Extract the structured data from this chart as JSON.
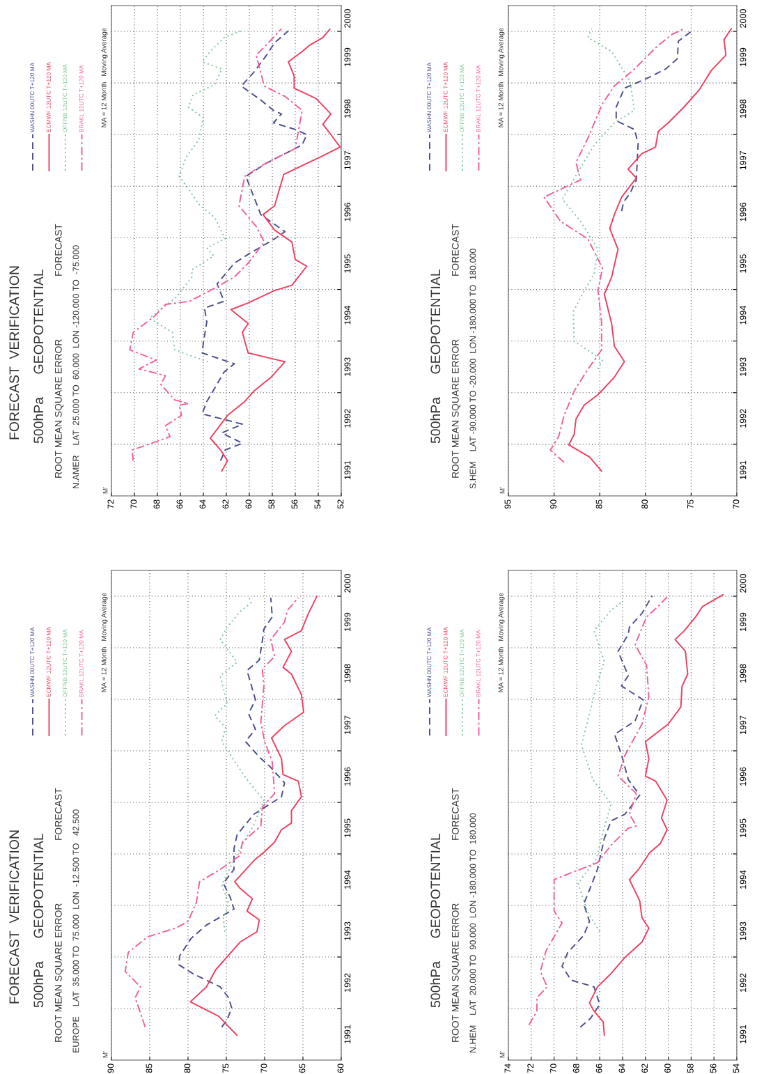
{
  "chart_data": [
    {
      "type": "line",
      "subtitle": "500hPa      GEOPOTENTIAL",
      "annotations": [
        "M'",
        "ROOT MEAN SQUARE ERROR",
        "FORECAST",
        "EUROPE    LAT  35.000 TO  75.000  LON  -12.500 TO   42.500",
        "MA = 12 Month   Moving Average",
        "FORECAST  VERIFICATION"
      ],
      "ylim": [
        1991,
        2000.5
      ],
      "yticks": [
        {
          "value": 1992,
          "label": null
        },
        {
          "value": 1993,
          "label": null
        },
        {
          "value": 1994,
          "label": null
        },
        {
          "value": 1995,
          "label": null
        },
        {
          "value": 1996,
          "label": null
        },
        {
          "value": 1997,
          "label": null
        },
        {
          "value": 1998,
          "label": null
        },
        {
          "value": 1999,
          "label": null
        },
        {
          "value": 2000,
          "label": null
        },
        {
          "value": 1991.5,
          "label": "1991"
        },
        {
          "value": 1992.5,
          "label": "1992"
        },
        {
          "value": 1993.5,
          "label": "1993"
        },
        {
          "value": 1994.5,
          "label": "1994"
        },
        {
          "value": 1995.5,
          "label": "1995"
        },
        {
          "value": 1996.5,
          "label": "1996"
        },
        {
          "value": 1997.5,
          "label": "1997"
        },
        {
          "value": 1998.5,
          "label": "1998"
        },
        {
          "value": 1999.5,
          "label": "1999"
        },
        {
          "value": 2000.25,
          "label": "2000"
        }
      ],
      "xlim": [
        90,
        60
      ],
      "xticks": [
        60,
        65,
        70,
        75,
        80,
        85,
        90
      ],
      "grid": true,
      "legend": "top left",
      "series": [
        {
          "name": "WASHN 00UTC T+120 MA",
          "color": "#4b4f8c",
          "line_style": "dashed",
          "values": [
            1991.64,
            1991.78,
            1992.01,
            1992.21,
            1992.42,
            1992.55,
            1992.68,
            1992.85,
            1993.02,
            1993.36,
            1993.62,
            1993.79,
            1993.93,
            1994.16,
            1994.43,
            1994.7,
            1995.1,
            1995.37,
            1995.77,
            1996.11,
            1996.38,
            1996.71,
            1996.85,
            1997.18,
            1997.42,
            1997.72,
            1997.99,
            1998.56,
            1998.76,
            1999.13,
            1999.36,
            1999.6,
            1999.97
          ],
          "x": [
            75.6,
            74.9,
            74.3,
            74.7,
            75.8,
            77.6,
            79.4,
            81.2,
            81.1,
            79.6,
            77.6,
            75.6,
            74.0,
            74.5,
            75.4,
            74.0,
            74.0,
            73.6,
            71.4,
            67.8,
            67.4,
            69.4,
            70.5,
            72.5,
            71.2,
            72.1,
            71.2,
            72.3,
            70.7,
            70.3,
            70.1,
            69.0,
            69.2
          ]
        },
        {
          "name": "ECMWF 12UTC T+120 MA",
          "color": "#ee4060",
          "line_style": "solid",
          "values": [
            1991.48,
            1991.85,
            1992.13,
            1992.42,
            1992.75,
            1993.29,
            1993.49,
            1993.72,
            1993.89,
            1994.13,
            1994.33,
            1994.46,
            1994.87,
            1995.03,
            1995.23,
            1995.47,
            1995.6,
            1995.84,
            1996.11,
            1996.41,
            1996.54,
            1996.85,
            1997.25,
            1997.49,
            1997.75,
            1998.09,
            1998.49,
            1998.62,
            1998.93,
            1999.16,
            1999.33,
            1999.66,
            1999.93,
            2000.0
          ],
          "x": [
            73.6,
            76.0,
            79.7,
            77.6,
            76.4,
            73.2,
            71.0,
            70.7,
            72.3,
            71.6,
            73.2,
            73.9,
            71.4,
            70.1,
            68.7,
            67.8,
            66.5,
            66.5,
            65.2,
            65.6,
            67.6,
            67.8,
            69.1,
            67.4,
            64.9,
            65.2,
            66.5,
            67.6,
            66.5,
            67.4,
            65.2,
            64.3,
            63.4,
            63.2
          ]
        },
        {
          "name": "OFFNB 12UTC T+120 MA",
          "color": "#80c49a",
          "line_style": "dotted",
          "values": [
            1993.49,
            1993.76,
            1994.03,
            1994.4,
            1994.73,
            1995.1,
            1995.57,
            1996.04,
            1996.44,
            1996.81,
            1997.18,
            1997.45,
            1997.68,
            1997.92,
            1998.46,
            1998.72,
            1999.16,
            1999.4,
            1999.7,
            1999.87,
            2000.0
          ],
          "x": [
            75.2,
            75.4,
            74.7,
            75.6,
            74.5,
            73.2,
            71.4,
            70.1,
            72.3,
            74.0,
            75.6,
            75.1,
            76.5,
            74.9,
            75.8,
            73.6,
            75.8,
            74.9,
            73.2,
            71.8,
            72.1
          ]
        },
        {
          "name": "BRAKL 12UTC T+120 MA",
          "color": "#f0609e",
          "line_style": "dashdot",
          "values": [
            1991.64,
            1991.91,
            1992.21,
            1992.42,
            1992.72,
            1993.09,
            1993.39,
            1993.56,
            1993.69,
            1994.06,
            1994.46,
            1994.7,
            1994.97,
            1995.23,
            1995.54,
            1995.91,
            1996.17,
            1996.78,
            1997.18,
            1997.55,
            1998.26,
            1998.59,
            1998.83,
            1999.16,
            1999.5,
            1999.73,
            1999.97
          ],
          "x": [
            85.6,
            86.2,
            86.9,
            86.2,
            88.2,
            87.8,
            85.3,
            81.6,
            80.0,
            78.9,
            78.5,
            75.8,
            73.2,
            72.9,
            70.5,
            70.3,
            68.7,
            69.0,
            70.0,
            70.5,
            70.1,
            70.3,
            68.7,
            69.2,
            67.4,
            67.0,
            65.6
          ]
        }
      ]
    },
    {
      "type": "line",
      "subtitle": "500hPa      GEOPOTENTIAL",
      "annotations": [
        "M'",
        "ROOT MEAN SQUARE ERROR",
        "FORECAST",
        "N.AMER    LAT  25.000 TO  60.000  LON -120.000 TO  -75.000",
        "MA = 12 Month   Moving Average",
        "FORECAST  VERIFICATION"
      ],
      "ylim": [
        1991,
        2000.5
      ],
      "yticks": [
        {
          "value": 1992,
          "label": null
        },
        {
          "value": 1993,
          "label": null
        },
        {
          "value": 1994,
          "label": null
        },
        {
          "value": 1995,
          "label": null
        },
        {
          "value": 1996,
          "label": null
        },
        {
          "value": 1997,
          "label": null
        },
        {
          "value": 1998,
          "label": null
        },
        {
          "value": 1999,
          "label": null
        },
        {
          "value": 2000,
          "label": null
        },
        {
          "value": 1991.5,
          "label": "1991"
        },
        {
          "value": 1992.5,
          "label": "1992"
        },
        {
          "value": 1993.5,
          "label": "1993"
        },
        {
          "value": 1994.5,
          "label": "1994"
        },
        {
          "value": 1995.5,
          "label": "1995"
        },
        {
          "value": 1996.5,
          "label": "1996"
        },
        {
          "value": 1997.5,
          "label": "1997"
        },
        {
          "value": 1998.5,
          "label": "1998"
        },
        {
          "value": 1999.5,
          "label": "1999"
        },
        {
          "value": 2000.25,
          "label": "2000"
        }
      ],
      "xlim": [
        72,
        52
      ],
      "xticks": [
        52,
        54,
        56,
        58,
        60,
        62,
        64,
        66,
        68,
        70,
        72
      ],
      "grid": true,
      "legend": "top left",
      "series": [
        {
          "name": "WASHN 00UTC T+120 MA",
          "color": "#4b4f8c",
          "line_style": "dashed",
          "values": [
            1991.68,
            1991.89,
            1992.02,
            1992.22,
            1992.39,
            1992.59,
            1992.83,
            1993.09,
            1993.4,
            1993.56,
            1993.77,
            1993.97,
            1994.37,
            1994.64,
            1994.77,
            1995.11,
            1995.51,
            1995.68,
            1995.98,
            1996.12,
            1996.45,
            1996.79,
            1997.19,
            1997.46,
            1997.8,
            1998.0,
            1998.1,
            1998.23,
            1998.4,
            1998.47,
            1998.67,
            1998.94,
            1999.21,
            1999.54,
            1999.78,
            2000.01
          ],
          "x": [
            62.5,
            62.1,
            60.6,
            62.4,
            60.6,
            64.1,
            63.7,
            63.0,
            62.2,
            61.3,
            64.1,
            64.0,
            63.7,
            63.9,
            62.2,
            62.8,
            61.3,
            60.1,
            57.8,
            56.9,
            59.0,
            59.6,
            60.3,
            58.4,
            55.4,
            55.0,
            56.0,
            57.9,
            57.2,
            57.9,
            59.0,
            60.7,
            59.6,
            58.5,
            57.8,
            56.6
          ]
        },
        {
          "name": "ECMWF 12UTC T+120 MA",
          "color": "#ee4060",
          "line_style": "solid",
          "values": [
            1991.48,
            1991.68,
            1991.89,
            1992.12,
            1992.29,
            1992.56,
            1992.83,
            1993.03,
            1993.3,
            1993.6,
            1993.77,
            1994.0,
            1994.17,
            1994.34,
            1994.61,
            1994.74,
            1994.98,
            1995.08,
            1995.45,
            1995.58,
            1995.92,
            1996.15,
            1996.45,
            1996.62,
            1997.23,
            1997.59,
            1997.76,
            1998.03,
            1998.2,
            1998.4,
            1998.7,
            1998.9,
            1999.14,
            1999.41,
            1999.61,
            1999.74,
            1999.88,
            2000.04
          ],
          "x": [
            62.4,
            61.9,
            62.5,
            63.4,
            62.8,
            61.9,
            60.4,
            59.6,
            58.1,
            56.9,
            60.1,
            60.4,
            60.6,
            60.1,
            61.6,
            60.1,
            57.8,
            56.3,
            55.0,
            56.0,
            56.3,
            57.8,
            58.8,
            57.8,
            57.0,
            53.6,
            52.1,
            53.0,
            53.6,
            52.9,
            54.2,
            56.1,
            56.1,
            56.6,
            55.4,
            54.7,
            53.6,
            53.0
          ]
        },
        {
          "name": "OFFNB 12UTC T+120 MA",
          "color": "#80c49a",
          "line_style": "dotted",
          "values": [
            1993.6,
            1993.7,
            1993.83,
            1994.17,
            1994.44,
            1994.84,
            1995.24,
            1995.38,
            1995.65,
            1995.81,
            1995.98,
            1996.39,
            1996.65,
            1996.92,
            1997.19,
            1997.56,
            1997.9,
            1998.33,
            1998.53,
            1998.77,
            1998.97,
            1999.27,
            1999.41,
            1999.61,
            1999.88,
            2000.01
          ],
          "x": [
            63.6,
            64.9,
            66.5,
            66.7,
            68.7,
            66.4,
            65.0,
            65.0,
            63.1,
            63.7,
            62.1,
            63.0,
            64.4,
            65.2,
            66.1,
            65.5,
            64.4,
            64.0,
            65.3,
            64.9,
            63.0,
            62.4,
            64.1,
            63.4,
            62.2,
            60.7
          ]
        },
        {
          "name": "BRAKL 12UTC T+120 MA",
          "color": "#f0609e",
          "line_style": "dashdot",
          "values": [
            1991.68,
            1991.89,
            1992.05,
            1992.15,
            1992.36,
            1992.56,
            1992.76,
            1992.79,
            1992.86,
            1993.16,
            1993.33,
            1993.46,
            1993.63,
            1993.83,
            1994.17,
            1994.47,
            1994.71,
            1994.77,
            1994.98,
            1995.24,
            1995.51,
            1995.92,
            1996.22,
            1996.62,
            1997.19,
            1997.43,
            1997.73,
            1998.47,
            1998.74,
            1998.94,
            1999.54,
            1999.74,
            2000.05
          ],
          "x": [
            70.1,
            70.2,
            68.1,
            66.9,
            67.3,
            65.9,
            66.1,
            65.3,
            66.5,
            67.7,
            67.3,
            69.6,
            68.1,
            70.4,
            70.1,
            68.3,
            67.3,
            65.2,
            63.4,
            61.3,
            60.1,
            58.7,
            59.4,
            60.9,
            60.4,
            58.7,
            56.0,
            55.4,
            56.9,
            58.7,
            59.4,
            58.5,
            57.2
          ]
        }
      ]
    },
    {
      "type": "line",
      "subtitle": "500hPa      GEOPOTENTIAL",
      "annotations": [
        "M'",
        "ROOT MEAN SQUARE ERROR",
        "FORECAST",
        "N.HEM    LAT  20.000 TO  90.000  LON -180.000 TO  180.000",
        "MA = 12 Month   Moving Average"
      ],
      "ylim": [
        1991,
        2000.5
      ],
      "yticks": [
        {
          "value": 1992,
          "label": null
        },
        {
          "value": 1993,
          "label": null
        },
        {
          "value": 1994,
          "label": null
        },
        {
          "value": 1995,
          "label": null
        },
        {
          "value": 1996,
          "label": null
        },
        {
          "value": 1997,
          "label": null
        },
        {
          "value": 1998,
          "label": null
        },
        {
          "value": 1999,
          "label": null
        },
        {
          "value": 2000,
          "label": null
        },
        {
          "value": 1991.5,
          "label": "1991"
        },
        {
          "value": 1992.5,
          "label": "1992"
        },
        {
          "value": 1993.5,
          "label": "1993"
        },
        {
          "value": 1994.5,
          "label": "1994"
        },
        {
          "value": 1995.5,
          "label": "1995"
        },
        {
          "value": 1996.5,
          "label": "1996"
        },
        {
          "value": 1997.5,
          "label": "1997"
        },
        {
          "value": 1998.5,
          "label": "1998"
        },
        {
          "value": 1999.5,
          "label": "1999"
        },
        {
          "value": 2000.25,
          "label": "2000"
        }
      ],
      "xlim": [
        74,
        54
      ],
      "xticks": [
        54,
        56,
        58,
        60,
        62,
        64,
        66,
        68,
        70,
        72,
        74
      ],
      "grid": true,
      "legend": "top left",
      "series": [
        {
          "name": "WASHN 00UTC T+120 MA",
          "color": "#4b4f8c",
          "line_style": "dashed",
          "values": [
            1991.64,
            1991.81,
            1992.08,
            1992.42,
            1992.55,
            1992.82,
            1993.09,
            1993.42,
            1993.69,
            1994.03,
            1994.3,
            1994.7,
            1995.3,
            1995.64,
            1995.77,
            1996.14,
            1996.44,
            1996.85,
            1997.32,
            1997.58,
            1997.99,
            1998.26,
            1998.46,
            1998.93,
            1999.26,
            1999.4,
            1999.67,
            2000.01
          ],
          "x": [
            67.7,
            66.8,
            66.0,
            66.5,
            68.5,
            69.3,
            68.8,
            67.4,
            66.9,
            67.4,
            66.9,
            66.2,
            65.6,
            65.0,
            63.8,
            62.5,
            63.5,
            64.0,
            64.7,
            62.9,
            62.2,
            64.1,
            63.5,
            64.4,
            63.5,
            63.4,
            62.3,
            61.4
          ]
        },
        {
          "name": "ECMWF 12UTC T+120 MA",
          "color": "#ee4060",
          "line_style": "solid",
          "values": [
            1991.48,
            1991.74,
            1991.95,
            1992.11,
            1992.42,
            1992.68,
            1992.99,
            1993.29,
            1993.56,
            1993.76,
            1994.09,
            1994.5,
            1994.7,
            1995.03,
            1995.2,
            1995.47,
            1995.7,
            1996.04,
            1996.41,
            1996.51,
            1996.85,
            1997.18,
            1997.52,
            1997.85,
            1998.25,
            1998.49,
            1998.93,
            1999.16,
            1999.33,
            1999.6,
            1999.8,
            2000.03
          ],
          "x": [
            65.6,
            65.7,
            66.5,
            66.9,
            66.2,
            65.0,
            63.8,
            62.3,
            61.7,
            62.3,
            62.5,
            63.4,
            62.6,
            61.6,
            60.7,
            60.1,
            60.6,
            60.1,
            61.1,
            62.0,
            61.7,
            62.0,
            60.0,
            58.9,
            58.8,
            58.3,
            58.5,
            59.4,
            58.6,
            57.6,
            57.0,
            55.2
          ]
        },
        {
          "name": "OFFNB 12UTC T+120 MA",
          "color": "#80c49a",
          "line_style": "dotted",
          "values": [
            1993.49,
            1993.89,
            1994.43,
            1994.9,
            1995.44,
            1995.97,
            1996.44,
            1997.11,
            1997.72,
            1998.26,
            1998.73,
            1999.33,
            1999.73,
            1999.9
          ],
          "x": [
            66.0,
            67.1,
            67.9,
            66.3,
            65.7,
            65.0,
            66.6,
            67.6,
            66.9,
            66.3,
            65.6,
            66.5,
            65.0,
            64.0
          ]
        },
        {
          "name": "BRAKL 12UTC T+120 MA",
          "color": "#f0609e",
          "line_style": "dashdot",
          "values": [
            1991.68,
            1991.95,
            1992.21,
            1992.42,
            1992.72,
            1993.12,
            1993.66,
            1993.89,
            1994.5,
            1994.66,
            1994.83,
            1995.17,
            1995.5,
            1995.54,
            1995.77,
            1996.17,
            1996.51,
            1996.91,
            1997.52,
            1998.05,
            1998.66,
            1999.06,
            1999.6,
            1999.8,
            2000.01
          ],
          "x": [
            72.2,
            71.5,
            71.5,
            70.6,
            71.2,
            70.7,
            69.3,
            70.0,
            70.0,
            68.2,
            66.2,
            65.0,
            63.5,
            62.8,
            63.4,
            62.8,
            64.4,
            63.8,
            62.3,
            61.7,
            61.9,
            62.9,
            61.9,
            60.9,
            60.0
          ]
        }
      ]
    },
    {
      "type": "line",
      "subtitle": "500hPa      GEOPOTENTIAL",
      "annotations": [
        "M'",
        "ROOT MEAN SQUARE ERROR",
        "FORECAST",
        "S.HEM    LAT -90.000 TO -20.000  LON -180.000 TO  180.000",
        "MA = 12 Month   Moving Average"
      ],
      "ylim": [
        1991,
        2000.5
      ],
      "yticks": [
        {
          "value": 1992,
          "label": null
        },
        {
          "value": 1993,
          "label": null
        },
        {
          "value": 1994,
          "label": null
        },
        {
          "value": 1995,
          "label": null
        },
        {
          "value": 1996,
          "label": null
        },
        {
          "value": 1997,
          "label": null
        },
        {
          "value": 1998,
          "label": null
        },
        {
          "value": 1999,
          "label": null
        },
        {
          "value": 2000,
          "label": null
        },
        {
          "value": 1991.5,
          "label": "1991"
        },
        {
          "value": 1992.5,
          "label": "1992"
        },
        {
          "value": 1993.5,
          "label": "1993"
        },
        {
          "value": 1994.5,
          "label": "1994"
        },
        {
          "value": 1995.5,
          "label": "1995"
        },
        {
          "value": 1996.5,
          "label": "1996"
        },
        {
          "value": 1997.5,
          "label": "1997"
        },
        {
          "value": 1998.5,
          "label": "1998"
        },
        {
          "value": 1999.5,
          "label": "1999"
        },
        {
          "value": 2000.25,
          "label": "2000"
        }
      ],
      "xlim": [
        95,
        70
      ],
      "xticks": [
        70,
        75,
        80,
        85,
        90,
        95
      ],
      "grid": true,
      "legend": "top left",
      "series": [
        {
          "name": "WASHN 00UTC T+120 MA",
          "color": "#4b4f8c",
          "line_style": "dashed",
          "values": [
            1996.52,
            1996.69,
            1996.86,
            1997.12,
            1997.83,
            1998.1,
            1998.27,
            1998.53,
            1998.9,
            1999.1,
            1999.27,
            1999.47,
            1999.81,
            2000.01
          ],
          "x": [
            82.6,
            82.4,
            81.7,
            81.0,
            80.8,
            81.2,
            83.2,
            83.2,
            82.3,
            79.7,
            77.8,
            76.5,
            76.4,
            74.9
          ]
        },
        {
          "name": "ECMWF 12UTC T+120 MA",
          "color": "#ee4060",
          "line_style": "solid",
          "values": [
            1991.48,
            1991.75,
            1991.99,
            1992.19,
            1992.49,
            1992.76,
            1992.96,
            1993.3,
            1993.6,
            1993.9,
            1994.34,
            1994.91,
            1995.24,
            1995.78,
            1996.18,
            1996.45,
            1996.79,
            1997.16,
            1997.33,
            1997.63,
            1997.76,
            1998.06,
            1998.23,
            1998.53,
            1998.87,
            1999.24,
            1999.54,
            1999.84,
            2000.05
          ],
          "x": [
            84.8,
            86.1,
            88.4,
            87.8,
            87.6,
            86.7,
            85.2,
            83.4,
            82.3,
            83.4,
            83.7,
            84.5,
            83.7,
            83.0,
            83.9,
            83.4,
            82.6,
            81.0,
            81.9,
            80.4,
            78.9,
            78.6,
            77.5,
            75.8,
            74.1,
            72.8,
            71.2,
            71.4,
            70.6
          ]
        },
        {
          "name": "OFFNB 12UTC T+120 MA",
          "color": "#80c49a",
          "line_style": "dotted",
          "values": [
            1993.46,
            1993.63,
            1994.0,
            1994.57,
            1994.91,
            1995.31,
            1995.78,
            1996.32,
            1996.75,
            1997.33,
            1997.8,
            1998.23,
            1998.47,
            1999.04,
            1999.61,
            1999.88,
            2000.05
          ],
          "x": [
            85.2,
            84.7,
            87.8,
            87.9,
            86.9,
            85.6,
            85.2,
            87.1,
            89.1,
            87.2,
            85.6,
            83.4,
            81.2,
            81.7,
            83.7,
            86.3,
            85.9
          ]
        },
        {
          "name": "BRAKL 12UTC T+120 MA",
          "color": "#f0609e",
          "line_style": "dashdot",
          "values": [
            1991.65,
            1991.89,
            1992.15,
            1992.56,
            1993.03,
            1993.4,
            1993.83,
            1994.37,
            1994.98,
            1995.41,
            1995.98,
            1996.32,
            1996.79,
            1997.12,
            1997.46,
            1997.93,
            1998.6,
            1998.94,
            1999.27,
            1999.68,
            1999.94,
            2000.05
          ],
          "x": [
            88.9,
            90.4,
            89.5,
            88.9,
            87.8,
            86.5,
            84.8,
            84.8,
            85.2,
            84.7,
            86.3,
            89.3,
            91.1,
            87.1,
            87.6,
            86.3,
            84.7,
            83.4,
            81.2,
            78.9,
            77.1,
            75.8
          ]
        }
      ]
    }
  ]
}
